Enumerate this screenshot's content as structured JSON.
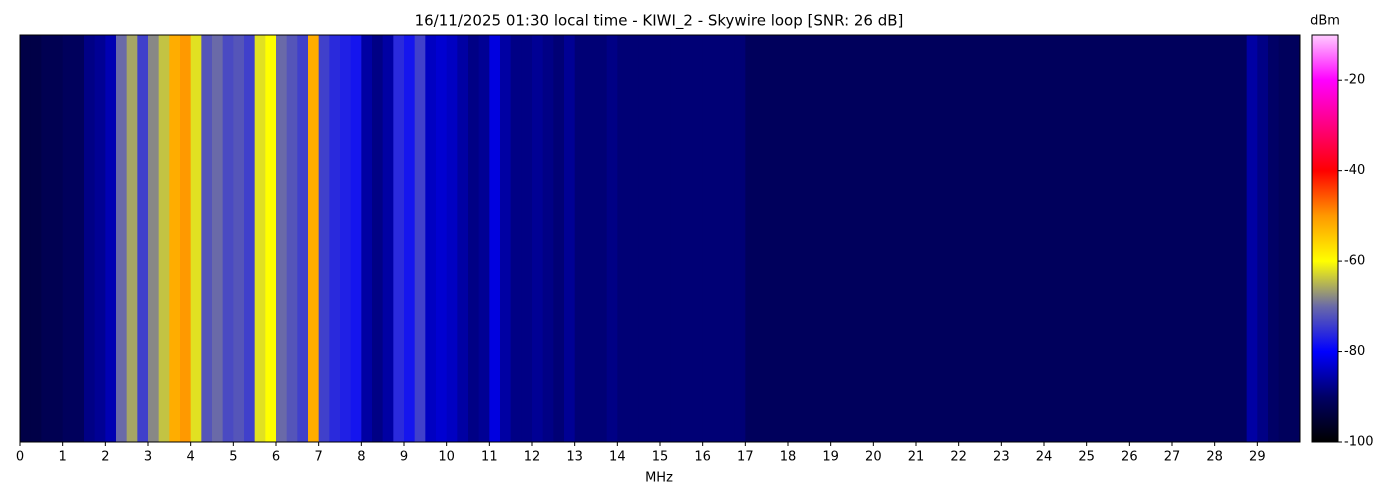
{
  "chart_data": {
    "type": "heatmap",
    "title": "16/11/2025 01:30 local time - KIWI_2 - Skywire loop [SNR: 26 dB]",
    "xlabel": "MHz",
    "colorbar_label": "dBm",
    "x": [
      0,
      0.25,
      0.5,
      0.75,
      1,
      1.25,
      1.5,
      1.75,
      2,
      2.25,
      2.5,
      2.75,
      3,
      3.25,
      3.5,
      3.75,
      4,
      4.25,
      4.5,
      4.75,
      5,
      5.25,
      5.5,
      5.75,
      6,
      6.25,
      6.5,
      6.75,
      7,
      7.25,
      7.5,
      7.75,
      8,
      8.25,
      8.5,
      8.75,
      9,
      9.25,
      9.5,
      9.75,
      10,
      10.25,
      10.5,
      10.75,
      11,
      11.25,
      11.5,
      11.75,
      12,
      12.25,
      12.5,
      12.75,
      13,
      13.25,
      13.5,
      13.75,
      14,
      14.25,
      14.5,
      14.75,
      15,
      15.25,
      15.5,
      15.75,
      16,
      16.25,
      16.5,
      16.75,
      17,
      17.25,
      17.5,
      17.75,
      18,
      18.25,
      18.5,
      18.75,
      19,
      19.25,
      19.5,
      19.75,
      20,
      20.25,
      20.5,
      20.75,
      21,
      21.25,
      21.5,
      21.75,
      22,
      22.25,
      22.5,
      22.75,
      23,
      23.25,
      23.5,
      23.75,
      24,
      24.25,
      24.5,
      24.75,
      25,
      25.25,
      25.5,
      25.75,
      26,
      26.25,
      26.5,
      26.75,
      27,
      27.25,
      27.5,
      27.75,
      28,
      28.25,
      28.5,
      28.75,
      29,
      29.25,
      29.5,
      29.75
    ],
    "values": [
      -93,
      -93,
      -92,
      -92,
      -91,
      -91,
      -88,
      -87,
      -85,
      -70,
      -66,
      -74,
      -68,
      -64,
      -52,
      -50,
      -62,
      -72,
      -70,
      -73,
      -72,
      -74,
      -62,
      -60,
      -70,
      -72,
      -74,
      -52,
      -74,
      -76,
      -77,
      -78,
      -86,
      -88,
      -86,
      -76,
      -78,
      -74,
      -84,
      -83,
      -84,
      -86,
      -88,
      -87,
      -82,
      -86,
      -88,
      -88,
      -87,
      -88,
      -89,
      -87,
      -89,
      -89,
      -89,
      -88,
      -89,
      -89,
      -89,
      -89,
      -89,
      -89,
      -89,
      -89,
      -89,
      -89,
      -89,
      -89,
      -91,
      -91,
      -91,
      -91,
      -91,
      -91,
      -91,
      -91,
      -91,
      -91,
      -91,
      -91,
      -91,
      -91,
      -91,
      -91,
      -91,
      -91,
      -91,
      -91,
      -91,
      -91,
      -91,
      -91,
      -91,
      -91,
      -91,
      -91,
      -91,
      -91,
      -91,
      -91,
      -91,
      -91,
      -91,
      -91,
      -91,
      -91,
      -91,
      -91,
      -91,
      -91,
      -91,
      -91,
      -91,
      -91,
      -91,
      -86,
      -88,
      -90,
      -91,
      -91
    ],
    "xlim": [
      0,
      30
    ],
    "xticks": [
      0,
      1,
      2,
      3,
      4,
      5,
      6,
      7,
      8,
      9,
      10,
      11,
      12,
      13,
      14,
      15,
      16,
      17,
      18,
      19,
      20,
      21,
      22,
      23,
      24,
      25,
      26,
      27,
      28,
      29
    ],
    "clim": [
      -100,
      -10
    ],
    "cticks": [
      -100,
      -80,
      -60,
      -40,
      -20
    ],
    "colormap": [
      "#000000",
      "#000066",
      "#0000ff",
      "#6a6aa8",
      "#ffff00",
      "#ff9900",
      "#ff0000",
      "#ff0080",
      "#ff00ff",
      "#ffccff"
    ]
  }
}
